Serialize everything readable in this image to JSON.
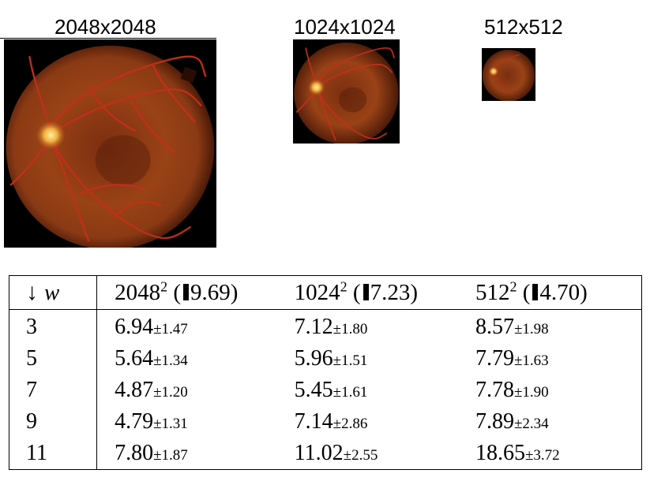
{
  "resolution_labels": {
    "r2048": "2048x2048",
    "r1024": "1024x1024",
    "r512": "512x512"
  },
  "images": [
    {
      "name": "fundus-2048",
      "depicts": "retinal fundus photograph, optic disc on left, red-orange vessels on dark background"
    },
    {
      "name": "fundus-1024",
      "depicts": "same retinal fundus photograph at lower resolution"
    },
    {
      "name": "fundus-512",
      "depicts": "same retinal fundus photograph at lowest resolution"
    }
  ],
  "table": {
    "header": {
      "w_arrow": "↓",
      "w_var": "w",
      "cols": [
        {
          "base": "2048",
          "exp": "2",
          "open": " (",
          "value": "9.69",
          "close": ")"
        },
        {
          "base": "1024",
          "exp": "2",
          "open": " (",
          "value": "7.23",
          "close": ")"
        },
        {
          "base": "512",
          "exp": "2",
          "open": " (",
          "value": "4.70",
          "close": ")"
        }
      ]
    },
    "rows": [
      {
        "w": "3",
        "cells": [
          {
            "mean": "6.94",
            "pm": "±1.47",
            "bold": false
          },
          {
            "mean": "7.12",
            "pm": "±1.80",
            "bold": false
          },
          {
            "mean": "8.57",
            "pm": "±1.98",
            "bold": false
          }
        ]
      },
      {
        "w": "5",
        "cells": [
          {
            "mean": "5.64",
            "pm": "±1.34",
            "bold": false
          },
          {
            "mean": "5.96",
            "pm": "±1.51",
            "bold": false
          },
          {
            "mean": "7.79",
            "pm": "±1.63",
            "bold": false
          }
        ]
      },
      {
        "w": "7",
        "cells": [
          {
            "mean": "4.87",
            "pm": "±1.20",
            "bold": false
          },
          {
            "mean": "5.45",
            "pm": "±1.61",
            "bold": true
          },
          {
            "mean": "7.78",
            "pm": "±1.90",
            "bold": true
          }
        ]
      },
      {
        "w": "9",
        "cells": [
          {
            "mean": "4.79",
            "pm": "±1.31",
            "bold": true
          },
          {
            "mean": "7.14",
            "pm": "±2.86",
            "bold": false
          },
          {
            "mean": "7.89",
            "pm": "±2.34",
            "bold": false
          }
        ]
      },
      {
        "w": "11",
        "cells": [
          {
            "mean": "7.80",
            "pm": "±1.87",
            "bold": false
          },
          {
            "mean": "11.02",
            "pm": "±2.55",
            "bold": false
          },
          {
            "mean": "18.65",
            "pm": "±3.72",
            "bold": false
          }
        ]
      }
    ]
  }
}
